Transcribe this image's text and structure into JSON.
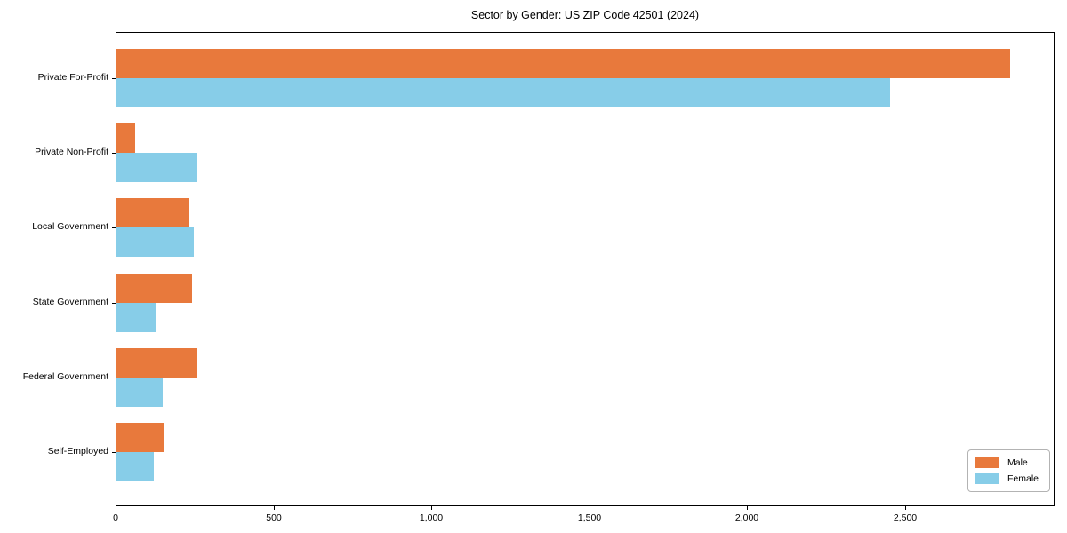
{
  "figure": {
    "background": "#ffffff"
  },
  "chart_data": {
    "type": "bar",
    "orientation": "horizontal",
    "title": "Sector by Gender: US ZIP Code 42501 (2024)",
    "categories": [
      "Private For-Profit",
      "Private Non-Profit",
      "Local Government",
      "State Government",
      "Federal Government",
      "Self-Employed"
    ],
    "series": [
      {
        "name": "Male",
        "color": "#E8793C",
        "values": [
          2830,
          60,
          232,
          240,
          257,
          150
        ]
      },
      {
        "name": "Female",
        "color": "#87CDE8",
        "values": [
          2450,
          255,
          246,
          128,
          145,
          117
        ]
      }
    ],
    "xlabel": "",
    "ylabel": "",
    "xlim": [
      0,
      2973
    ],
    "xticks": {
      "values": [
        0,
        500,
        1000,
        1500,
        2000,
        2500
      ],
      "labels": [
        "0",
        "500",
        "1,000",
        "1,500",
        "2,000",
        "2,500"
      ]
    },
    "grid": false,
    "legend": {
      "position": "lower right",
      "entries": [
        "Male",
        "Female"
      ]
    }
  }
}
